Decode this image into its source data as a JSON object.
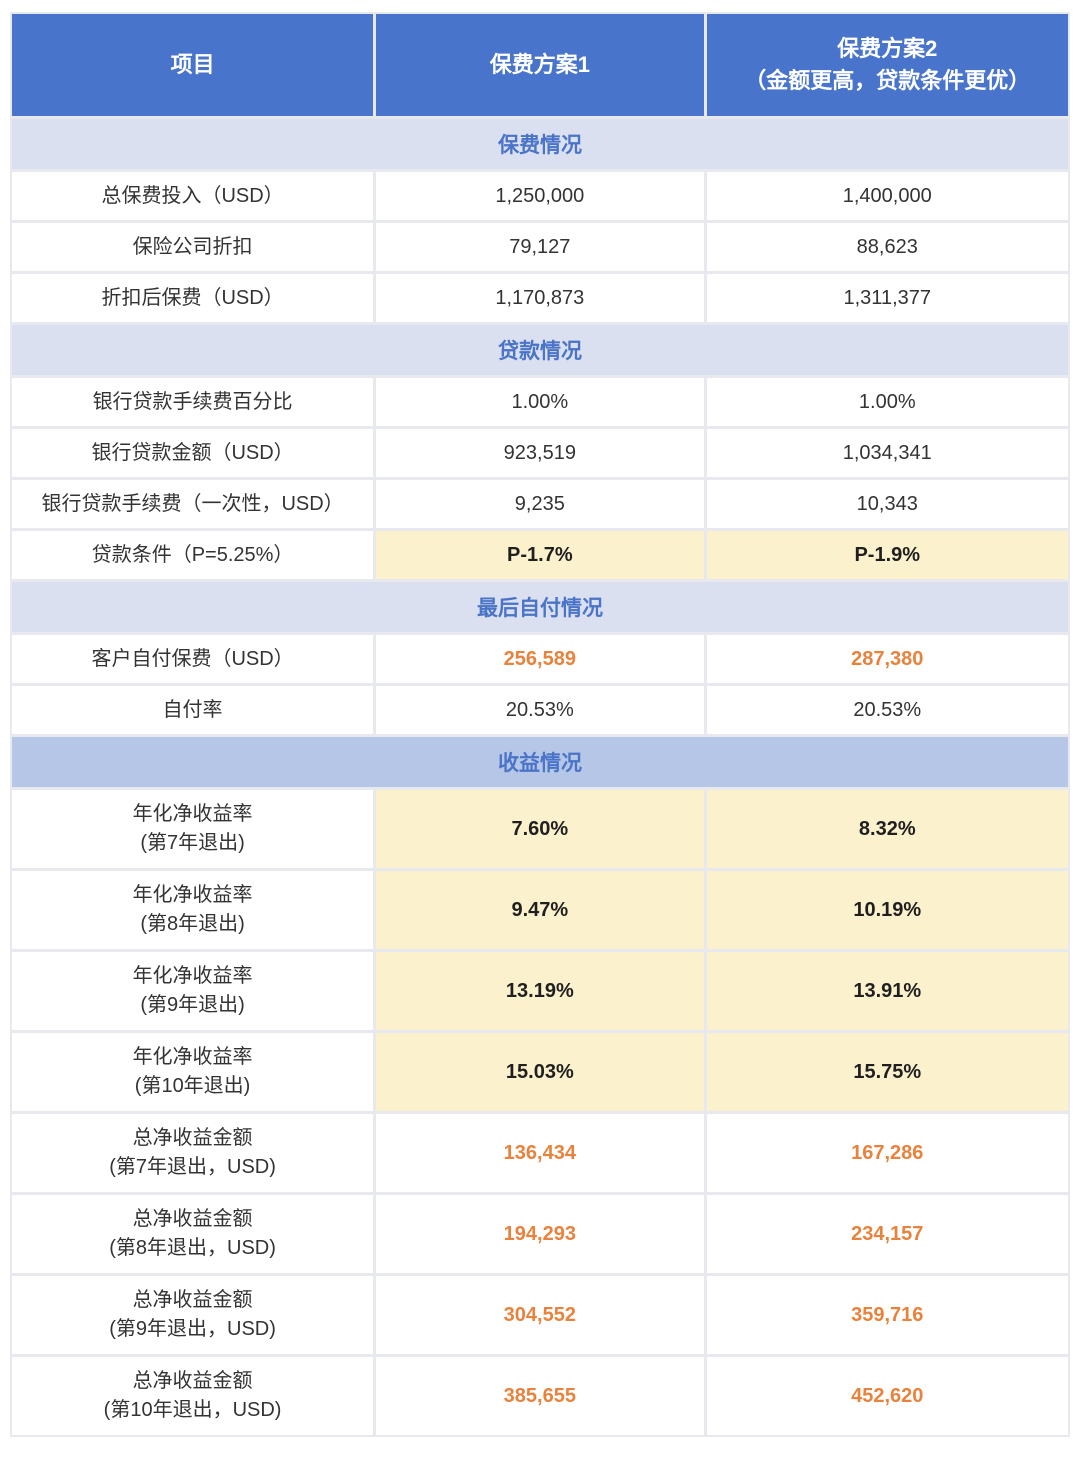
{
  "header": {
    "col1": "项目",
    "col2": "保费方案1",
    "col3_line1": "保费方案2",
    "col3_line2": "（金额更高，贷款条件更优）"
  },
  "colors": {
    "header_blue": "#4874CB",
    "band_light": "#DBE0F0",
    "band_dark": "#B6C6E6",
    "band_text": "#4A74C8",
    "highlight_yellow": "#FCF1CD",
    "highlight_orange": "#E8823C",
    "grid_line": "#E7E9EF",
    "body_text": "#333333"
  },
  "table": {
    "sections": [
      {
        "title": "保费情况",
        "band_style": "light",
        "rows": [
          {
            "label": "总保费投入（USD）",
            "values": [
              "1,250,000",
              "1,400,000"
            ],
            "style": "plain"
          },
          {
            "label": "保险公司折扣",
            "values": [
              "79,127",
              "88,623"
            ],
            "style": "plain"
          },
          {
            "label": "折扣后保费（USD）",
            "values": [
              "1,170,873",
              "1,311,377"
            ],
            "style": "plain"
          }
        ]
      },
      {
        "title": "贷款情况",
        "band_style": "light",
        "rows": [
          {
            "label": "银行贷款手续费百分比",
            "values": [
              "1.00%",
              "1.00%"
            ],
            "style": "plain"
          },
          {
            "label": "银行贷款金额（USD）",
            "values": [
              "923,519",
              "1,034,341"
            ],
            "style": "plain"
          },
          {
            "label": "银行贷款手续费（一次性，USD）",
            "values": [
              "9,235",
              "10,343"
            ],
            "style": "plain"
          },
          {
            "label": "贷款条件（P=5.25%）",
            "values": [
              "P-1.7%",
              "P-1.9%"
            ],
            "style": "yellow"
          }
        ]
      },
      {
        "title": "最后自付情况",
        "band_style": "light",
        "rows": [
          {
            "label": "客户自付保费（USD）",
            "values": [
              "256,589",
              "287,380"
            ],
            "style": "orange"
          },
          {
            "label": "自付率",
            "values": [
              "20.53%",
              "20.53%"
            ],
            "style": "plain"
          }
        ]
      },
      {
        "title": "收益情况",
        "band_style": "dark",
        "rows": [
          {
            "label": "年化净收益率",
            "label2": "(第7年退出)",
            "values": [
              "7.60%",
              "8.32%"
            ],
            "style": "yellow"
          },
          {
            "label": "年化净收益率",
            "label2": "(第8年退出)",
            "values": [
              "9.47%",
              "10.19%"
            ],
            "style": "yellow"
          },
          {
            "label": "年化净收益率",
            "label2": "(第9年退出)",
            "values": [
              "13.19%",
              "13.91%"
            ],
            "style": "yellow"
          },
          {
            "label": "年化净收益率",
            "label2": "(第10年退出)",
            "values": [
              "15.03%",
              "15.75%"
            ],
            "style": "yellow"
          },
          {
            "label": "总净收益金额",
            "label2": "(第7年退出，USD)",
            "values": [
              "136,434",
              "167,286"
            ],
            "style": "orange"
          },
          {
            "label": "总净收益金额",
            "label2": "(第8年退出，USD)",
            "values": [
              "194,293",
              "234,157"
            ],
            "style": "orange"
          },
          {
            "label": "总净收益金额",
            "label2": "(第9年退出，USD)",
            "values": [
              "304,552",
              "359,716"
            ],
            "style": "orange"
          },
          {
            "label": "总净收益金额",
            "label2": "(第10年退出，USD)",
            "values": [
              "385,655",
              "452,620"
            ],
            "style": "orange"
          }
        ]
      }
    ]
  }
}
